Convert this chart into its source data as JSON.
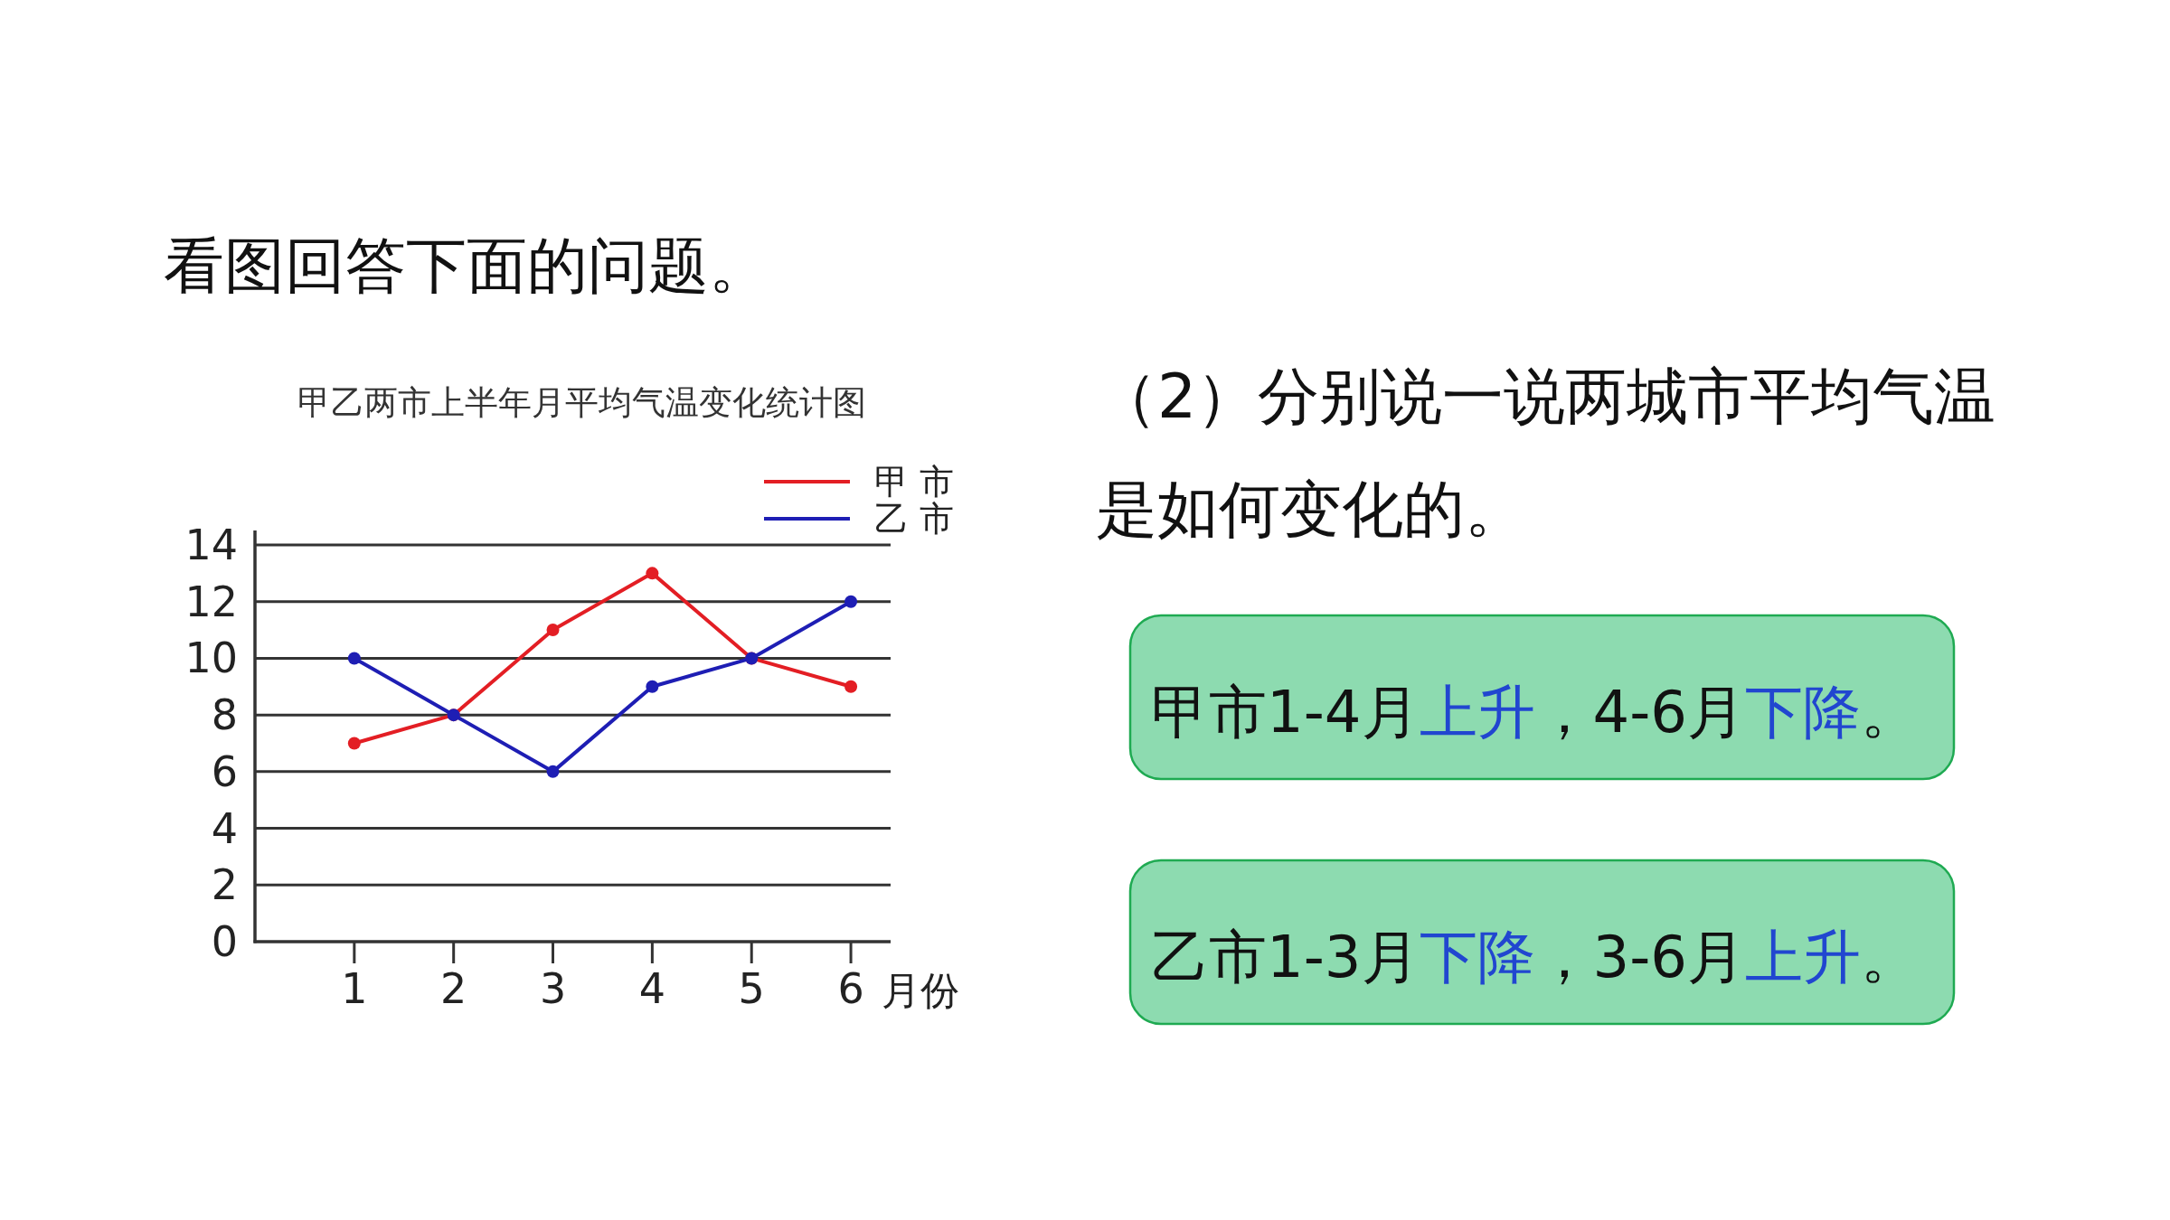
{
  "chart_data": {
    "type": "line",
    "title": "甲乙两市上半年月平均气温变化统计图",
    "xlabel": "月份",
    "categories": [
      "1",
      "2",
      "3",
      "4",
      "5",
      "6"
    ],
    "series": [
      {
        "name": "甲 市",
        "color": "#e31e24",
        "values": [
          7,
          8,
          11,
          13,
          10,
          9
        ]
      },
      {
        "name": "乙 市",
        "color": "#1e1eb4",
        "values": [
          10,
          8,
          6,
          9,
          10,
          12
        ]
      }
    ],
    "ylim": [
      0,
      14
    ],
    "yticks": [
      0,
      2,
      4,
      6,
      8,
      10,
      12,
      14
    ],
    "grid": "y",
    "legend": "top right",
    "marker": "circle",
    "line_style": "solid",
    "annotations": [
      "看图回答下面的问题。",
      "（2）分别说一说两城市平均气温是如何变化的。",
      "甲市1-4月",
      "上升",
      "，4-6月",
      "下降",
      "。",
      "乙市1-3月",
      "下降",
      "，3-6月",
      "上升",
      "。"
    ]
  }
}
